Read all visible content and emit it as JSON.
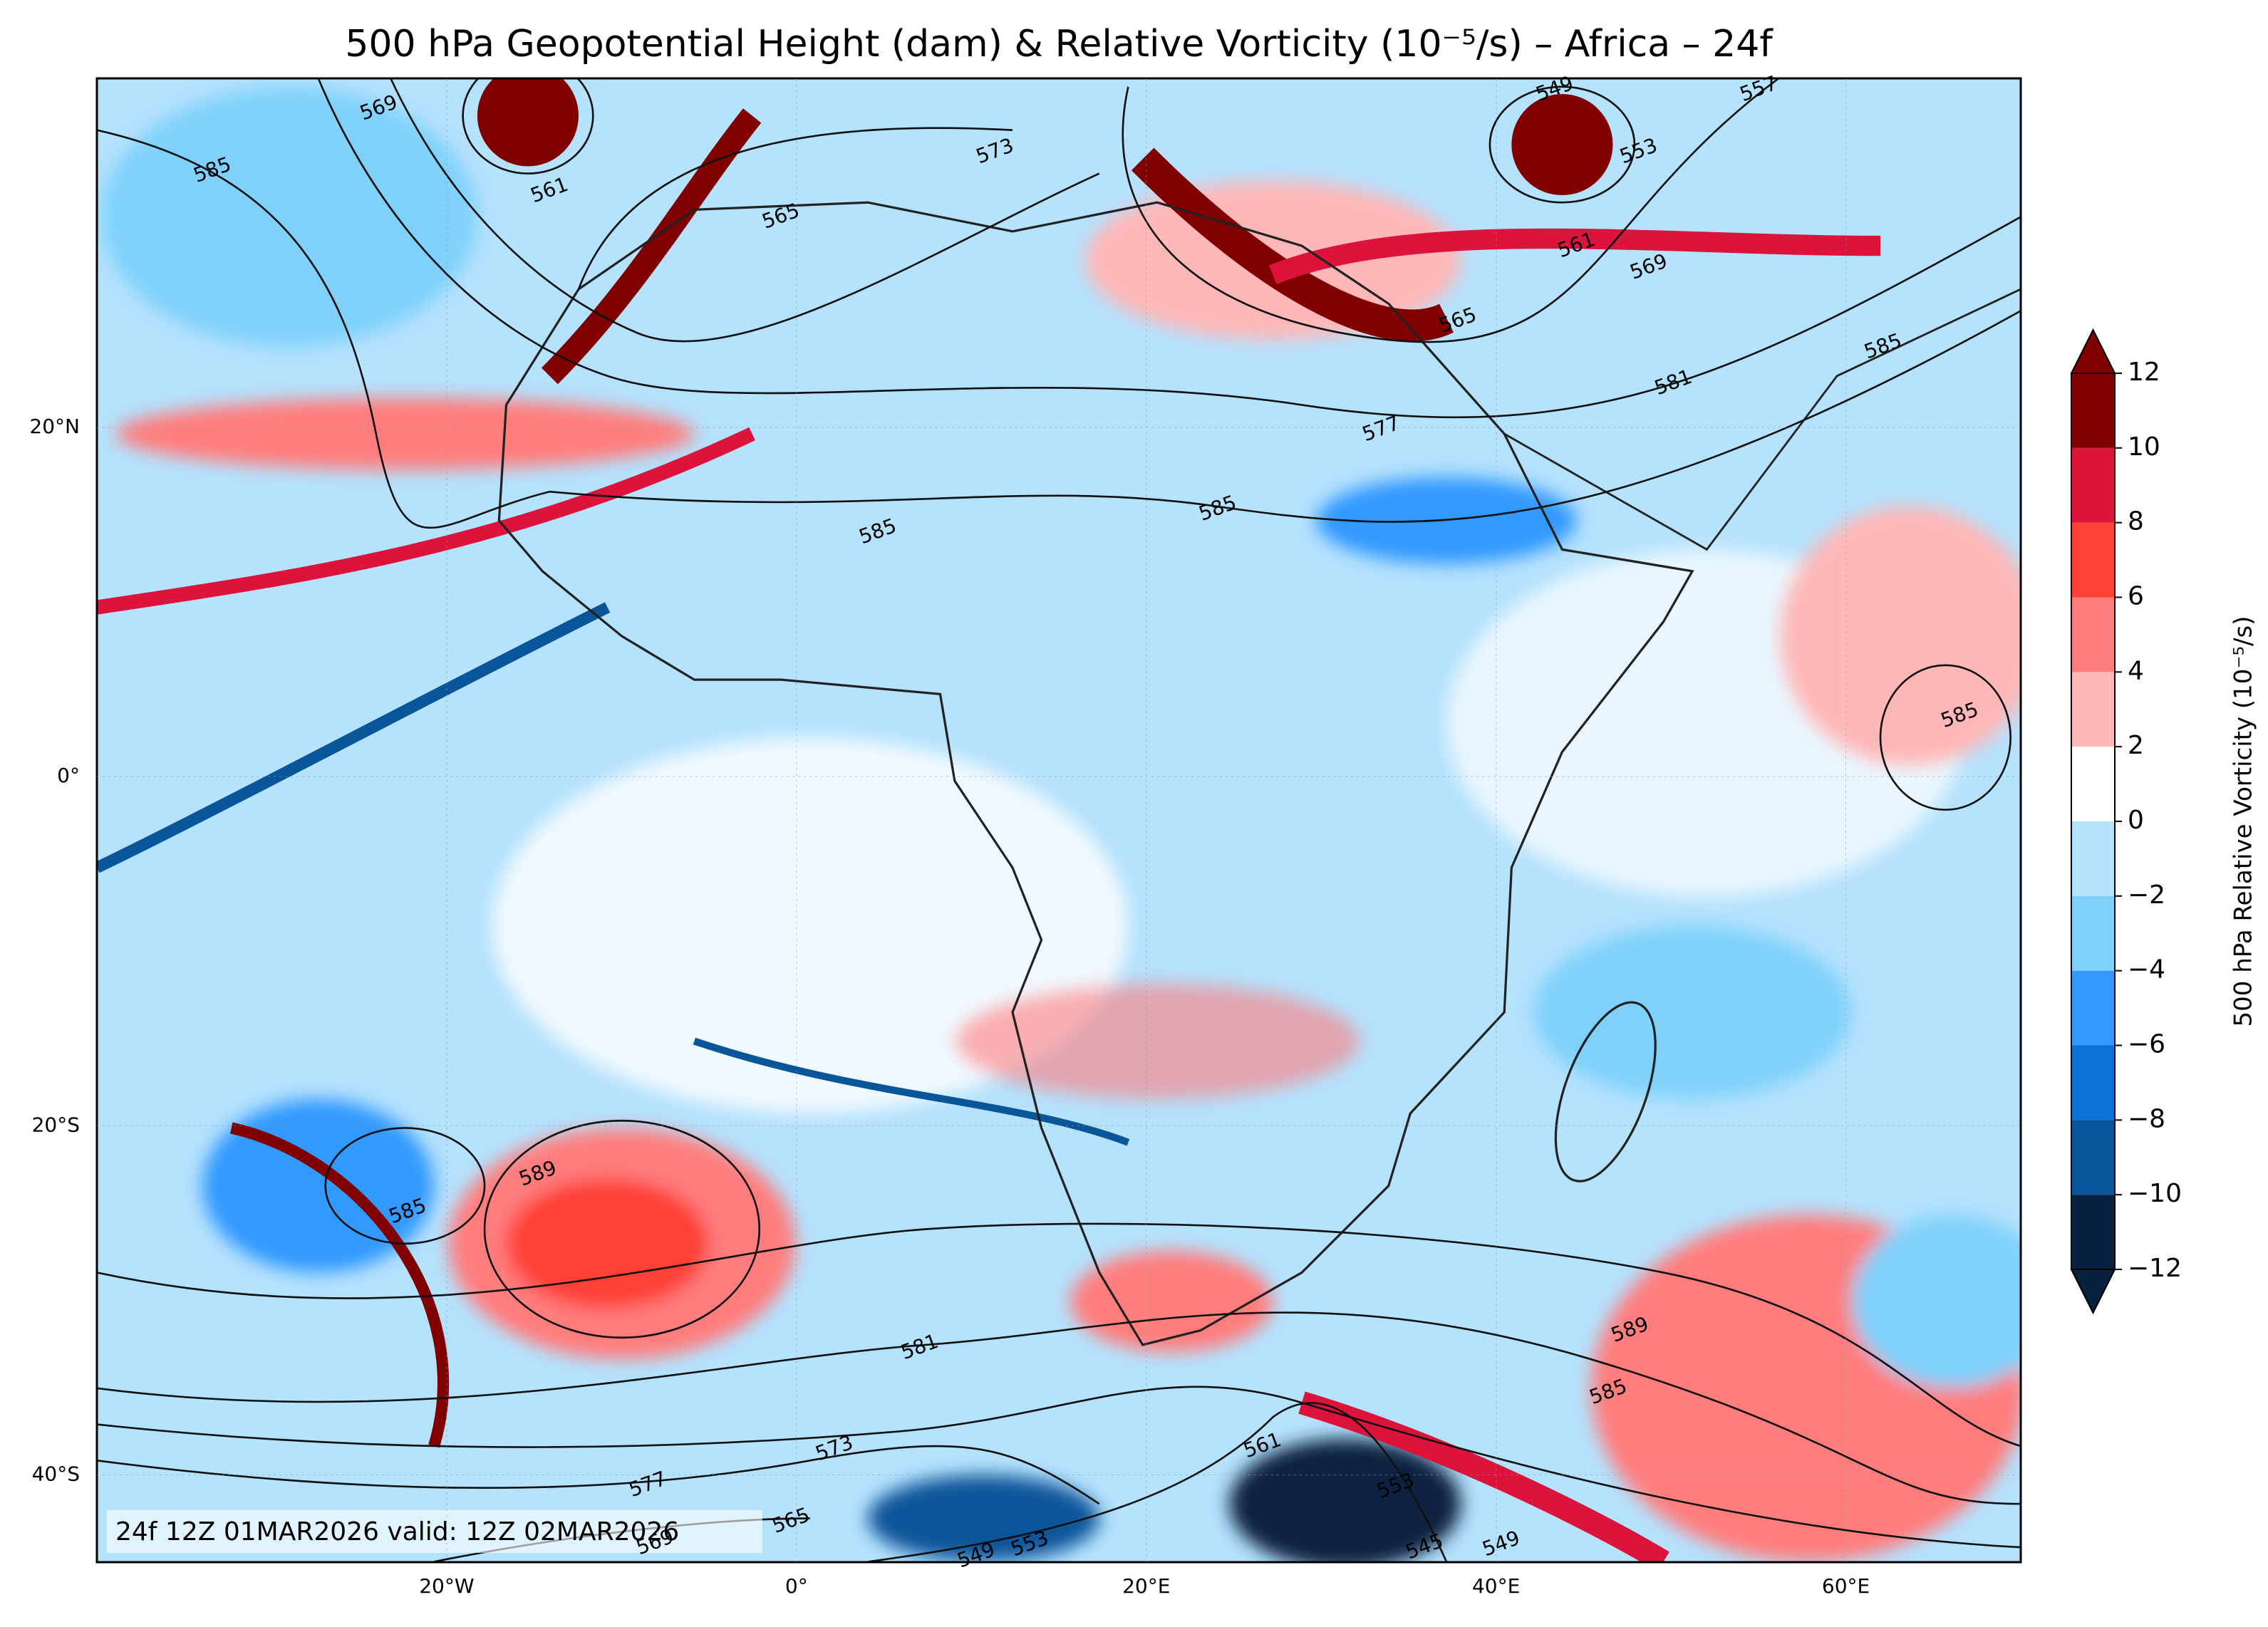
{
  "title": "500 hPa Geopotential Height (dam) & Relative Vorticity (10⁻⁵/s) – Africa – 24f",
  "map": {
    "xlim": [
      -40,
      70
    ],
    "ylim": [
      -45,
      40
    ],
    "xticks": [
      {
        "value": -20,
        "label": "20°W"
      },
      {
        "value": 0,
        "label": "0°"
      },
      {
        "value": 20,
        "label": "20°E"
      },
      {
        "value": 40,
        "label": "40°E"
      },
      {
        "value": 60,
        "label": "60°E"
      }
    ],
    "yticks": [
      {
        "value": 20,
        "label": "20°N"
      },
      {
        "value": 0,
        "label": "0°"
      },
      {
        "value": -20,
        "label": "20°S"
      },
      {
        "value": -40,
        "label": "40°S"
      }
    ],
    "grid": true
  },
  "colorbar": {
    "label": "500 hPa Relative Vorticity (10⁻⁵/s)",
    "levels": [
      {
        "value": -12,
        "label": "−12"
      },
      {
        "value": -10,
        "label": "−10"
      },
      {
        "value": -8,
        "label": "−8"
      },
      {
        "value": -6,
        "label": "−6"
      },
      {
        "value": -4,
        "label": "−4"
      },
      {
        "value": -2,
        "label": "−2"
      },
      0,
      2,
      4,
      6,
      8,
      10,
      12
    ],
    "colors": [
      "#08213f",
      "#08559a",
      "#0a74d6",
      "#3399ff",
      "#7fd1fb",
      "#b5e2fd",
      "#ffffff",
      "#ffb7b7",
      "#ff7d7d",
      "#ff4136",
      "#dc143c",
      "#800000"
    ],
    "extend_colors": [
      "#08213f",
      "#800000"
    ]
  },
  "contour_labels": [
    585,
    569,
    561,
    565,
    573,
    549,
    553,
    561,
    569,
    565,
    577,
    581,
    585,
    585,
    585,
    585,
    589,
    585,
    581,
    573,
    577,
    565,
    569,
    553,
    549,
    561,
    553,
    545,
    549,
    589,
    585,
    557
  ],
  "footer": "24f 12Z 01MAR2026 valid: 12Z 02MAR2026"
}
